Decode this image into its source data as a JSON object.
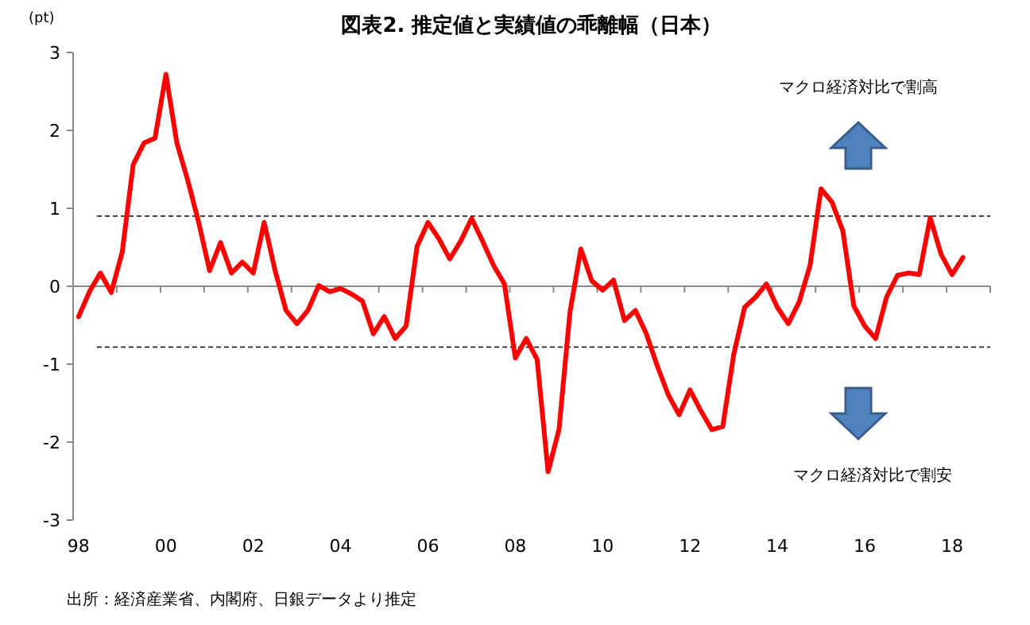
{
  "chart_data": {
    "type": "line",
    "title": "図表2. 推定値と実績値の乖離幅（日本）",
    "ylabel": "(pt)",
    "categories": [
      "98",
      null,
      null,
      null,
      null,
      null,
      null,
      null,
      "00",
      null,
      null,
      null,
      null,
      null,
      null,
      null,
      "02",
      null,
      null,
      null,
      null,
      null,
      null,
      null,
      "04",
      null,
      null,
      null,
      null,
      null,
      null,
      null,
      "06",
      null,
      null,
      null,
      null,
      null,
      null,
      null,
      "08",
      null,
      null,
      null,
      null,
      null,
      null,
      null,
      "10",
      null,
      null,
      null,
      null,
      null,
      null,
      null,
      "12",
      null,
      null,
      null,
      null,
      null,
      null,
      null,
      "14",
      null,
      null,
      null,
      null,
      null,
      null,
      null,
      "16",
      null,
      null,
      null,
      null,
      null,
      null,
      null,
      "18",
      null,
      null,
      null
    ],
    "series": [
      {
        "color": "#ff0000",
        "values": [
          -0.39,
          -0.07,
          0.17,
          -0.08,
          0.44,
          1.56,
          1.84,
          1.9,
          2.72,
          1.84,
          1.36,
          0.82,
          0.2,
          0.56,
          0.17,
          0.31,
          0.17,
          0.82,
          0.2,
          -0.31,
          -0.48,
          -0.31,
          0.01,
          -0.07,
          -0.03,
          -0.1,
          -0.19,
          -0.61,
          -0.39,
          -0.67,
          -0.51,
          0.51,
          0.82,
          0.61,
          0.35,
          0.58,
          0.87,
          0.58,
          0.27,
          0.03,
          -0.92,
          -0.67,
          -0.94,
          -2.38,
          -1.84,
          -0.34,
          0.48,
          0.07,
          -0.05,
          0.08,
          -0.44,
          -0.31,
          -0.61,
          -1.02,
          -1.39,
          -1.65,
          -1.33,
          -1.6,
          -1.84,
          -1.8,
          -0.88,
          -0.27,
          -0.14,
          0.03,
          -0.27,
          -0.48,
          -0.2,
          0.27,
          1.25,
          1.08,
          0.71,
          -0.25,
          -0.51,
          -0.67,
          -0.14,
          0.14,
          0.17,
          0.15,
          0.88,
          0.41,
          0.15,
          0.37,
          null,
          null
        ]
      }
    ],
    "ylim": [
      -3,
      3
    ],
    "yticks": [
      -3,
      -2,
      -1,
      0,
      1,
      2,
      3
    ],
    "marker": "none",
    "line_style": "solid",
    "ref_lines": [
      {
        "axis": "y",
        "value": 0.9,
        "color": "#000000",
        "line_style": "dashed"
      },
      {
        "axis": "y",
        "value": -0.78,
        "color": "#000000",
        "line_style": "dashed"
      }
    ],
    "annotations": [
      "マクロ経済対比で割高",
      "マクロ経済対比で割安",
      "出所：経済産業省、内閣府、日銀データより推定"
    ]
  }
}
